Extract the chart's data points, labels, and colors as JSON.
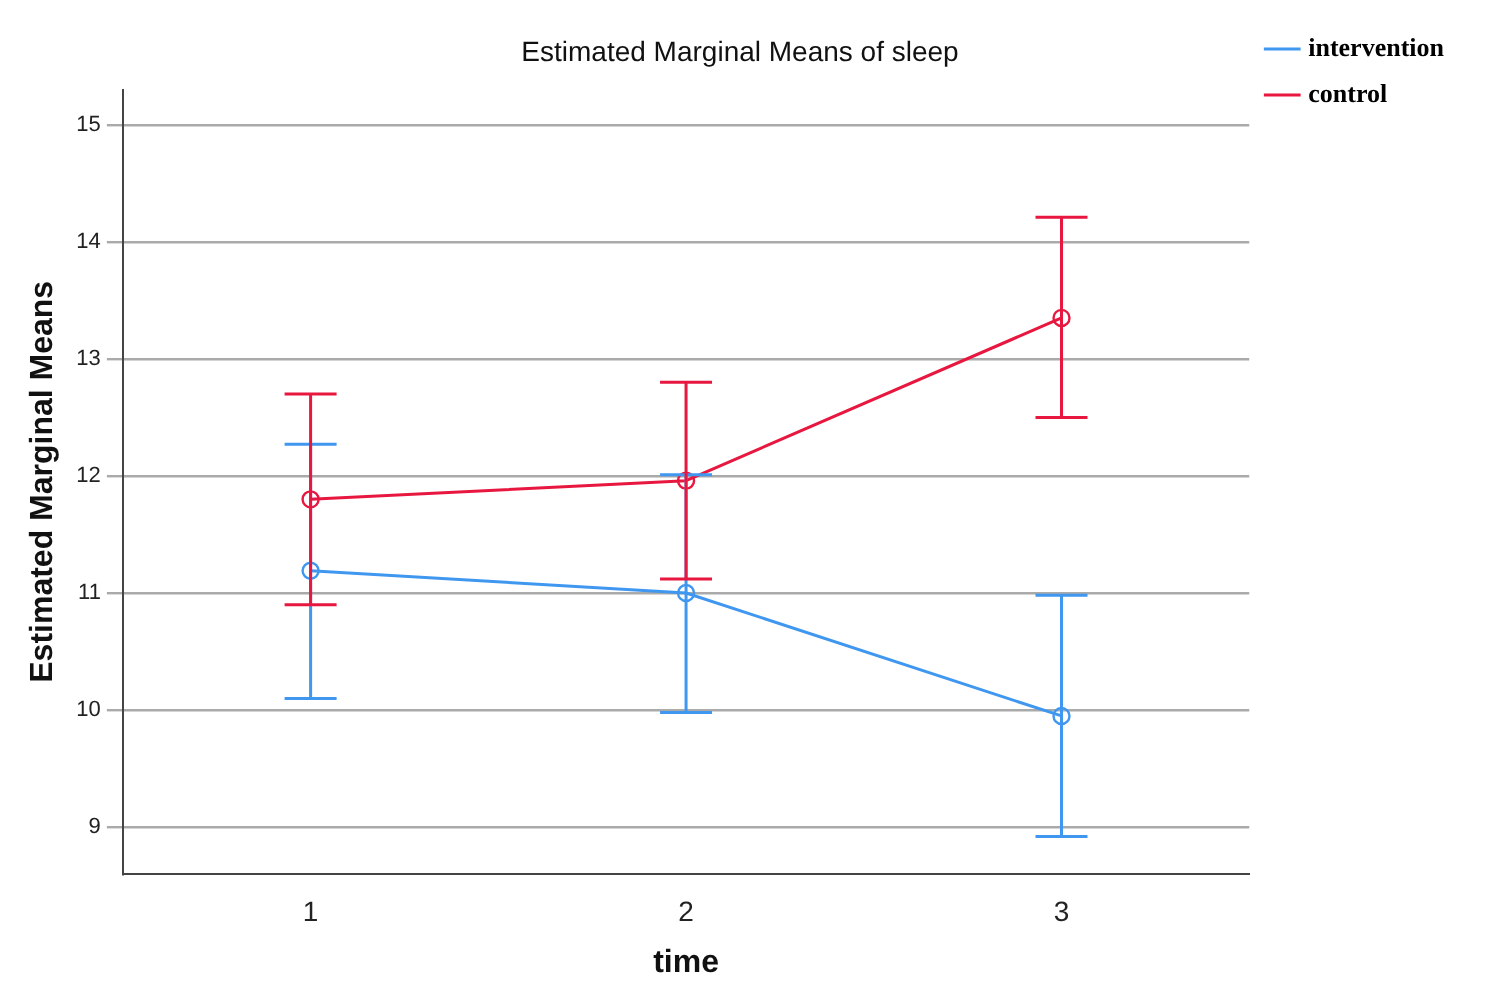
{
  "chart_data": {
    "type": "line",
    "title": "Estimated Marginal Means of sleep",
    "xlabel": "time",
    "ylabel": "Estimated Marginal Means",
    "categories": [
      "1",
      "2",
      "3"
    ],
    "series": [
      {
        "name": "intervention",
        "color": "#3f97f0",
        "values": [
          11.19,
          11.0,
          9.95
        ],
        "errors": [
          [
            10.1,
            12.27
          ],
          [
            9.98,
            12.01
          ],
          [
            8.92,
            10.98
          ]
        ]
      },
      {
        "name": "control",
        "color": "#e8173f",
        "values": [
          11.8,
          11.96,
          13.35
        ],
        "errors": [
          [
            10.9,
            12.7
          ],
          [
            11.12,
            12.8
          ],
          [
            12.5,
            14.21
          ]
        ]
      }
    ],
    "ylim": [
      8.6,
      15.3
    ],
    "yticks": [
      9,
      10,
      11,
      12,
      13,
      14,
      15
    ],
    "grid": "y",
    "legend": "top right",
    "marker": "circle",
    "line_style": "solid"
  }
}
